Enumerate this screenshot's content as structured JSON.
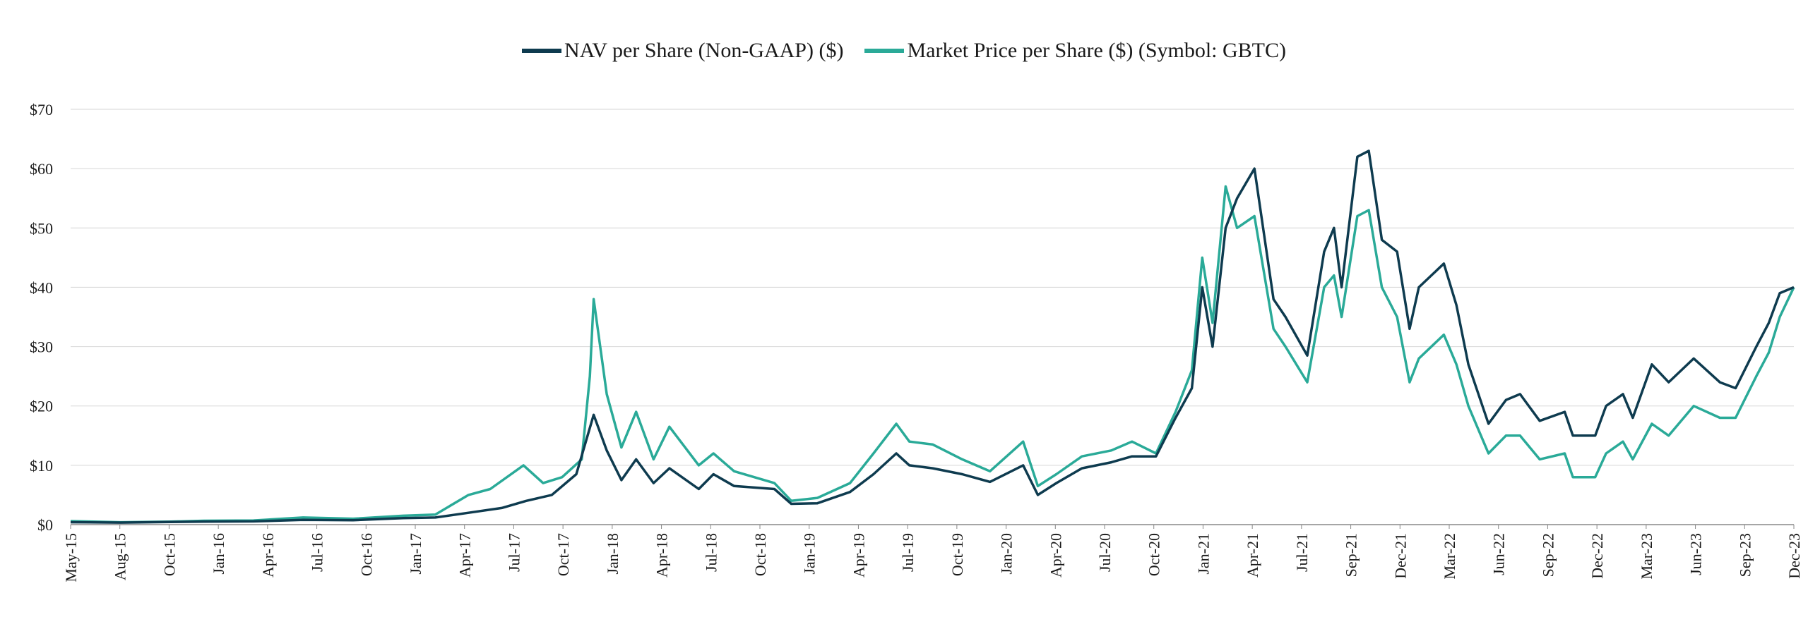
{
  "chart_data": {
    "type": "line",
    "title": "",
    "xlabel": "",
    "ylabel": "",
    "ylim": [
      0,
      70
    ],
    "y_ticks": [
      "$0",
      "$10",
      "$20",
      "$30",
      "$40",
      "$50",
      "$60",
      "$70"
    ],
    "x_tick_labels": [
      "May-15",
      "Aug-15",
      "Oct-15",
      "Jan-16",
      "Apr-16",
      "Jul-16",
      "Oct-16",
      "Jan-17",
      "Apr-17",
      "Jul-17",
      "Oct-17",
      "Jan-18",
      "Apr-18",
      "Jul-18",
      "Oct-18",
      "Jan-19",
      "Apr-19",
      "Jul-19",
      "Oct-19",
      "Jan-20",
      "Apr-20",
      "Jul-20",
      "Oct-20",
      "Jan-21",
      "Apr-21",
      "Jul-21",
      "Sep-21",
      "Dec-21",
      "Mar-22",
      "Jun-22",
      "Sep-22",
      "Dec-22",
      "Mar-23",
      "Jun-23",
      "Sep-23",
      "Dec-23"
    ],
    "x_range": [
      "2015-05",
      "2023-12-31"
    ],
    "grid": "horizontal",
    "legend_position": "top-center",
    "series": [
      {
        "name": "NAV per Share (Non-GAAP) ($)",
        "color": "#0e3b4f",
        "points": [
          [
            "2015-05-01",
            0.4
          ],
          [
            "2015-08-01",
            0.35
          ],
          [
            "2015-11-01",
            0.45
          ],
          [
            "2016-01-01",
            0.5
          ],
          [
            "2016-04-01",
            0.55
          ],
          [
            "2016-07-01",
            0.8
          ],
          [
            "2016-10-01",
            0.75
          ],
          [
            "2017-01-01",
            1.1
          ],
          [
            "2017-03-01",
            1.2
          ],
          [
            "2017-05-01",
            2.0
          ],
          [
            "2017-07-01",
            2.8
          ],
          [
            "2017-08-15",
            4.0
          ],
          [
            "2017-10-01",
            5.0
          ],
          [
            "2017-11-15",
            8.5
          ],
          [
            "2017-12-17",
            18.5
          ],
          [
            "2018-01-10",
            12.5
          ],
          [
            "2018-02-06",
            7.5
          ],
          [
            "2018-03-05",
            11.0
          ],
          [
            "2018-04-06",
            7.0
          ],
          [
            "2018-05-05",
            9.5
          ],
          [
            "2018-06-28",
            6.0
          ],
          [
            "2018-07-25",
            8.5
          ],
          [
            "2018-09-01",
            6.5
          ],
          [
            "2018-11-14",
            6.0
          ],
          [
            "2018-12-15",
            3.5
          ],
          [
            "2019-02-01",
            3.6
          ],
          [
            "2019-04-02",
            5.5
          ],
          [
            "2019-05-15",
            8.5
          ],
          [
            "2019-06-26",
            12.0
          ],
          [
            "2019-07-20",
            10.0
          ],
          [
            "2019-09-01",
            9.5
          ],
          [
            "2019-10-25",
            8.5
          ],
          [
            "2019-12-15",
            7.2
          ],
          [
            "2020-02-14",
            10.0
          ],
          [
            "2020-03-12",
            5.0
          ],
          [
            "2020-04-15",
            7.0
          ],
          [
            "2020-06-01",
            9.5
          ],
          [
            "2020-07-25",
            10.5
          ],
          [
            "2020-09-01",
            11.5
          ],
          [
            "2020-10-15",
            11.5
          ],
          [
            "2020-11-20",
            18.0
          ],
          [
            "2020-12-20",
            23.0
          ],
          [
            "2021-01-08",
            40.0
          ],
          [
            "2021-01-27",
            30.0
          ],
          [
            "2021-02-20",
            50.0
          ],
          [
            "2021-03-13",
            55.0
          ],
          [
            "2021-04-14",
            60.0
          ],
          [
            "2021-05-19",
            38.0
          ],
          [
            "2021-06-10",
            35.0
          ],
          [
            "2021-07-20",
            28.5
          ],
          [
            "2021-08-20",
            46.0
          ],
          [
            "2021-09-07",
            50.0
          ],
          [
            "2021-09-21",
            40.0
          ],
          [
            "2021-10-20",
            62.0
          ],
          [
            "2021-11-10",
            63.0
          ],
          [
            "2021-12-04",
            48.0
          ],
          [
            "2022-01-01",
            46.0
          ],
          [
            "2022-01-24",
            33.0
          ],
          [
            "2022-02-10",
            40.0
          ],
          [
            "2022-03-28",
            44.0
          ],
          [
            "2022-04-20",
            37.0
          ],
          [
            "2022-05-12",
            27.0
          ],
          [
            "2022-06-18",
            17.0
          ],
          [
            "2022-07-20",
            21.0
          ],
          [
            "2022-08-15",
            22.0
          ],
          [
            "2022-09-20",
            17.5
          ],
          [
            "2022-11-05",
            19.0
          ],
          [
            "2022-11-20",
            15.0
          ],
          [
            "2022-12-31",
            15.0
          ],
          [
            "2023-01-20",
            20.0
          ],
          [
            "2023-02-20",
            22.0
          ],
          [
            "2023-03-10",
            18.0
          ],
          [
            "2023-04-14",
            27.0
          ],
          [
            "2023-05-15",
            24.0
          ],
          [
            "2023-06-30",
            28.0
          ],
          [
            "2023-08-17",
            24.0
          ],
          [
            "2023-09-15",
            23.0
          ],
          [
            "2023-10-23",
            30.0
          ],
          [
            "2023-11-15",
            34.0
          ],
          [
            "2023-12-05",
            39.0
          ],
          [
            "2023-12-31",
            40.0
          ]
        ]
      },
      {
        "name": "Market Price per Share ($) (Symbol: GBTC)",
        "color": "#2aaa98",
        "points": [
          [
            "2015-05-01",
            0.6
          ],
          [
            "2015-08-01",
            0.4
          ],
          [
            "2015-11-01",
            0.5
          ],
          [
            "2016-01-01",
            0.65
          ],
          [
            "2016-04-01",
            0.7
          ],
          [
            "2016-07-01",
            1.2
          ],
          [
            "2016-10-01",
            1.0
          ],
          [
            "2017-01-01",
            1.5
          ],
          [
            "2017-03-01",
            1.7
          ],
          [
            "2017-05-01",
            5.0
          ],
          [
            "2017-06-10",
            6.0
          ],
          [
            "2017-08-10",
            10.0
          ],
          [
            "2017-09-15",
            7.0
          ],
          [
            "2017-10-20",
            8.0
          ],
          [
            "2017-11-25",
            11.0
          ],
          [
            "2017-12-10",
            25.0
          ],
          [
            "2017-12-17",
            38.0
          ],
          [
            "2018-01-10",
            22.0
          ],
          [
            "2018-02-06",
            13.0
          ],
          [
            "2018-03-05",
            19.0
          ],
          [
            "2018-04-06",
            11.0
          ],
          [
            "2018-05-05",
            16.5
          ],
          [
            "2018-06-28",
            10.0
          ],
          [
            "2018-07-25",
            12.0
          ],
          [
            "2018-09-01",
            9.0
          ],
          [
            "2018-11-14",
            7.0
          ],
          [
            "2018-12-15",
            4.0
          ],
          [
            "2019-02-01",
            4.5
          ],
          [
            "2019-04-02",
            7.0
          ],
          [
            "2019-05-15",
            12.0
          ],
          [
            "2019-06-26",
            17.0
          ],
          [
            "2019-07-20",
            14.0
          ],
          [
            "2019-09-01",
            13.5
          ],
          [
            "2019-10-25",
            11.0
          ],
          [
            "2019-12-15",
            9.0
          ],
          [
            "2020-02-14",
            14.0
          ],
          [
            "2020-03-12",
            6.5
          ],
          [
            "2020-04-15",
            8.5
          ],
          [
            "2020-06-01",
            11.5
          ],
          [
            "2020-07-25",
            12.5
          ],
          [
            "2020-09-01",
            14.0
          ],
          [
            "2020-10-15",
            12.0
          ],
          [
            "2020-11-20",
            19.0
          ],
          [
            "2020-12-20",
            26.0
          ],
          [
            "2021-01-08",
            45.0
          ],
          [
            "2021-01-27",
            34.0
          ],
          [
            "2021-02-20",
            57.0
          ],
          [
            "2021-03-13",
            50.0
          ],
          [
            "2021-04-14",
            52.0
          ],
          [
            "2021-05-19",
            33.0
          ],
          [
            "2021-06-10",
            30.0
          ],
          [
            "2021-07-20",
            24.0
          ],
          [
            "2021-08-20",
            40.0
          ],
          [
            "2021-09-07",
            42.0
          ],
          [
            "2021-09-21",
            35.0
          ],
          [
            "2021-10-20",
            52.0
          ],
          [
            "2021-11-10",
            53.0
          ],
          [
            "2021-12-04",
            40.0
          ],
          [
            "2022-01-01",
            35.0
          ],
          [
            "2022-01-24",
            24.0
          ],
          [
            "2022-02-10",
            28.0
          ],
          [
            "2022-03-28",
            32.0
          ],
          [
            "2022-04-20",
            27.0
          ],
          [
            "2022-05-12",
            20.0
          ],
          [
            "2022-06-18",
            12.0
          ],
          [
            "2022-07-20",
            15.0
          ],
          [
            "2022-08-15",
            15.0
          ],
          [
            "2022-09-20",
            11.0
          ],
          [
            "2022-11-05",
            12.0
          ],
          [
            "2022-11-20",
            8.0
          ],
          [
            "2022-12-31",
            8.0
          ],
          [
            "2023-01-20",
            12.0
          ],
          [
            "2023-02-20",
            14.0
          ],
          [
            "2023-03-10",
            11.0
          ],
          [
            "2023-04-14",
            17.0
          ],
          [
            "2023-05-15",
            15.0
          ],
          [
            "2023-06-30",
            20.0
          ],
          [
            "2023-08-17",
            18.0
          ],
          [
            "2023-09-15",
            18.0
          ],
          [
            "2023-10-23",
            25.0
          ],
          [
            "2023-11-15",
            29.0
          ],
          [
            "2023-12-05",
            35.0
          ],
          [
            "2023-12-31",
            40.0
          ]
        ]
      }
    ]
  }
}
